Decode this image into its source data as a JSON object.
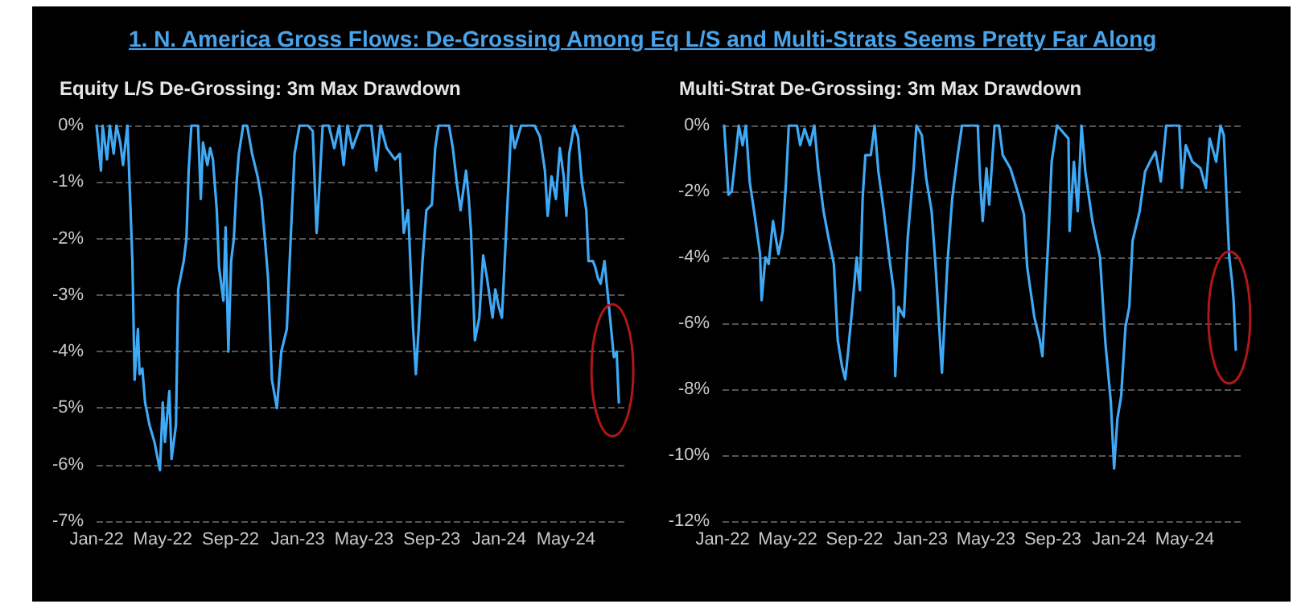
{
  "chart_data": [
    {
      "type": "line",
      "title": "Equity L/S De-Grossing: 3m Max Drawdown",
      "annotations": [
        "1. N. America Gross Flows:  De-Grossing Among Eq L/S and Multi-Strats Seems Pretty Far Along"
      ],
      "x": [
        "2022-01-01",
        "2022-01-09",
        "2022-01-12",
        "2022-01-20",
        "2022-01-25",
        "2022-02-01",
        "2022-02-06",
        "2022-02-13",
        "2022-02-18",
        "2022-02-26",
        "2022-03-01",
        "2022-03-07",
        "2022-03-11",
        "2022-03-17",
        "2022-03-20",
        "2022-03-25",
        "2022-03-30",
        "2022-04-07",
        "2022-04-16",
        "2022-04-26",
        "2022-05-01",
        "2022-05-05",
        "2022-05-13",
        "2022-05-17",
        "2022-05-25",
        "2022-05-29",
        "2022-06-08",
        "2022-06-13",
        "2022-06-17",
        "2022-06-22",
        "2022-07-04",
        "2022-07-09",
        "2022-07-13",
        "2022-07-21",
        "2022-07-26",
        "2022-07-31",
        "2022-08-07",
        "2022-08-11",
        "2022-08-19",
        "2022-08-23",
        "2022-08-28",
        "2022-09-02",
        "2022-09-07",
        "2022-09-12",
        "2022-09-16",
        "2022-09-24",
        "2022-10-01",
        "2022-10-10",
        "2022-10-20",
        "2022-10-27",
        "2022-11-03",
        "2022-11-08",
        "2022-11-15",
        "2022-11-24",
        "2022-12-02",
        "2022-12-12",
        "2022-12-19",
        "2022-12-26",
        "2023-01-04",
        "2023-01-19",
        "2023-01-28",
        "2023-02-04",
        "2023-02-09",
        "2023-02-15",
        "2023-02-26",
        "2023-03-08",
        "2023-03-17",
        "2023-03-25",
        "2023-04-01",
        "2023-04-10",
        "2023-04-25",
        "2023-05-14",
        "2023-05-23",
        "2023-05-31",
        "2023-06-11",
        "2023-06-26",
        "2023-07-05",
        "2023-07-12",
        "2023-07-20",
        "2023-07-29",
        "2023-08-03",
        "2023-08-08",
        "2023-08-15",
        "2023-08-22",
        "2023-09-01",
        "2023-09-07",
        "2023-09-13",
        "2023-10-02",
        "2023-10-09",
        "2023-10-16",
        "2023-10-23",
        "2023-11-02",
        "2023-11-07",
        "2023-11-11",
        "2023-11-18",
        "2023-11-26",
        "2023-12-03",
        "2023-12-10",
        "2023-12-20",
        "2023-12-25",
        "2023-12-31",
        "2024-01-06",
        "2024-01-13",
        "2024-01-19",
        "2024-01-23",
        "2024-01-29",
        "2024-02-10",
        "2024-03-05",
        "2024-03-15",
        "2024-03-24",
        "2024-03-29",
        "2024-04-05",
        "2024-04-13",
        "2024-04-20",
        "2024-04-27",
        "2024-05-02",
        "2024-05-07",
        "2024-05-16",
        "2024-05-23",
        "2024-05-30",
        "2024-06-07",
        "2024-06-11",
        "2024-06-19",
        "2024-06-23",
        "2024-06-28",
        "2024-07-03",
        "2024-07-10",
        "2024-07-15",
        "2024-07-22",
        "2024-07-27",
        "2024-08-01",
        "2024-08-05"
      ],
      "series": [
        {
          "color": "#3fa9f5",
          "values": [
            0,
            -0.8,
            0,
            -0.6,
            0,
            -0.5,
            0,
            -0.3,
            -0.7,
            0,
            -0.8,
            -2.4,
            -4.5,
            -3.6,
            -4.4,
            -4.3,
            -4.9,
            -5.3,
            -5.6,
            -6.1,
            -4.9,
            -5.6,
            -4.7,
            -5.9,
            -5.3,
            -2.9,
            -2.4,
            -2.0,
            -0.8,
            0,
            0,
            -1.3,
            -0.3,
            -0.7,
            -0.4,
            -0.6,
            -1.5,
            -2.5,
            -3.1,
            -1.8,
            -4.0,
            -2.4,
            -2.0,
            -1.0,
            -0.5,
            0,
            0,
            -0.5,
            -0.9,
            -1.3,
            -2.1,
            -2.7,
            -4.5,
            -5.0,
            -4.0,
            -3.6,
            -2.0,
            -0.5,
            0,
            0,
            -0.1,
            -1.9,
            -1.1,
            0,
            0,
            -0.4,
            0,
            -0.7,
            0,
            -0.4,
            0,
            0,
            -0.8,
            0,
            -0.4,
            -0.6,
            -0.5,
            -1.9,
            -1.5,
            -3.6,
            -4.4,
            -3.6,
            -2.4,
            -1.5,
            -1.4,
            -0.4,
            0,
            0,
            -0.4,
            -1.0,
            -1.5,
            -0.8,
            -1.3,
            -1.9,
            -3.8,
            -3.4,
            -2.3,
            -2.7,
            -3.4,
            -2.9,
            -3.2,
            -3.4,
            -2.0,
            -0.8,
            0,
            -0.4,
            0,
            0,
            -0.2,
            -0.8,
            -1.6,
            -0.9,
            -1.3,
            -0.4,
            -0.9,
            -1.6,
            -0.5,
            0,
            -0.2,
            -1.0,
            -1.5,
            -2.4,
            -2.4,
            -2.5,
            -2.7,
            -2.8,
            -2.4,
            -2.9,
            -3.6,
            -4.1,
            -4.0,
            -4.9
          ]
        }
      ],
      "xlim": [
        "2022-01-01",
        "2024-08-15"
      ],
      "xticks": [
        {
          "value": "2022-01-01",
          "label": "Jan-22"
        },
        {
          "value": "2022-05-01",
          "label": "May-22"
        },
        {
          "value": "2022-09-01",
          "label": "Sep-22"
        },
        {
          "value": "2023-01-01",
          "label": "Jan-23"
        },
        {
          "value": "2023-05-01",
          "label": "May-23"
        },
        {
          "value": "2023-09-01",
          "label": "Sep-23"
        },
        {
          "value": "2024-01-01",
          "label": "Jan-24"
        },
        {
          "value": "2024-05-01",
          "label": "May-24"
        }
      ],
      "ylim": [
        -7,
        0
      ],
      "yticks": [
        {
          "value": 0,
          "label": "0%"
        },
        {
          "value": -1,
          "label": "-1%"
        },
        {
          "value": -2,
          "label": "-2%"
        },
        {
          "value": -3,
          "label": "-3%"
        },
        {
          "value": -4,
          "label": "-4%"
        },
        {
          "value": -5,
          "label": "-5%"
        },
        {
          "value": -6,
          "label": "-6%"
        },
        {
          "value": -7,
          "label": "-7%"
        }
      ],
      "grid": "y",
      "marker": "none",
      "line_style": "solid"
    },
    {
      "type": "line",
      "title": "Multi-Strat De-Grossing: 3m Max Drawdown",
      "x": [
        "2022-01-04",
        "2022-01-12",
        "2022-01-18",
        "2022-01-24",
        "2022-01-31",
        "2022-02-07",
        "2022-02-13",
        "2022-02-20",
        "2022-03-01",
        "2022-03-11",
        "2022-03-14",
        "2022-03-21",
        "2022-03-27",
        "2022-04-04",
        "2022-04-14",
        "2022-04-22",
        "2022-04-28",
        "2022-05-03",
        "2022-05-18",
        "2022-05-24",
        "2022-06-01",
        "2022-06-11",
        "2022-06-19",
        "2022-06-26",
        "2022-07-06",
        "2022-07-15",
        "2022-07-25",
        "2022-08-01",
        "2022-08-09",
        "2022-08-15",
        "2022-08-20",
        "2022-08-28",
        "2022-09-05",
        "2022-09-11",
        "2022-09-16",
        "2022-09-21",
        "2022-10-01",
        "2022-10-08",
        "2022-10-15",
        "2022-10-25",
        "2022-11-04",
        "2022-11-12",
        "2022-11-15",
        "2022-11-21",
        "2022-12-01",
        "2022-12-08",
        "2022-12-19",
        "2022-12-24",
        "2023-01-03",
        "2023-01-11",
        "2023-01-21",
        "2023-01-28",
        "2023-02-09",
        "2023-02-19",
        "2023-02-28",
        "2023-03-10",
        "2023-03-18",
        "2023-04-16",
        "2023-04-20",
        "2023-04-25",
        "2023-05-02",
        "2023-05-07",
        "2023-05-17",
        "2023-05-25",
        "2023-06-01",
        "2023-06-15",
        "2023-06-30",
        "2023-07-10",
        "2023-07-16",
        "2023-07-29",
        "2023-08-08",
        "2023-08-13",
        "2023-08-24",
        "2023-08-30",
        "2023-09-09",
        "2023-09-30",
        "2023-10-02",
        "2023-10-10",
        "2023-10-17",
        "2023-10-24",
        "2023-10-31",
        "2023-11-13",
        "2023-11-27",
        "2023-12-07",
        "2023-12-17",
        "2023-12-23",
        "2023-12-29",
        "2024-01-05",
        "2024-01-13",
        "2024-01-20",
        "2024-01-26",
        "2024-02-08",
        "2024-02-18",
        "2024-02-27",
        "2024-03-08",
        "2024-03-18",
        "2024-03-28",
        "2024-04-21",
        "2024-04-26",
        "2024-05-03",
        "2024-05-15",
        "2024-05-30",
        "2024-06-09",
        "2024-06-16",
        "2024-06-28",
        "2024-07-06",
        "2024-07-12",
        "2024-07-17",
        "2024-07-22",
        "2024-07-27",
        "2024-07-30",
        "2024-08-03"
      ],
      "series": [
        {
          "color": "#3fa9f5",
          "values": [
            0,
            -2.1,
            -2.0,
            -1.1,
            0,
            -0.6,
            0,
            -1.7,
            -2.7,
            -3.9,
            -5.3,
            -4.0,
            -4.2,
            -2.9,
            -3.9,
            -3.2,
            -1.7,
            0,
            0,
            -0.6,
            -0.1,
            -0.6,
            0,
            -1.3,
            -2.6,
            -3.4,
            -4.2,
            -6.5,
            -7.3,
            -7.7,
            -6.9,
            -5.5,
            -4.0,
            -5.0,
            -2.2,
            -0.9,
            -0.9,
            0,
            -1.4,
            -2.6,
            -4.0,
            -5.0,
            -7.6,
            -5.5,
            -5.8,
            -3.4,
            -1.3,
            0,
            -0.3,
            -1.6,
            -2.6,
            -4.2,
            -7.5,
            -4.2,
            -2.2,
            -0.9,
            0,
            0,
            -1.6,
            -2.9,
            -1.3,
            -2.4,
            0,
            0,
            -0.9,
            -1.3,
            -2.1,
            -2.7,
            -4.3,
            -5.8,
            -6.5,
            -7.0,
            -3.4,
            -1.1,
            0,
            -0.4,
            -3.2,
            -1.1,
            -2.6,
            0,
            -1.4,
            -2.9,
            -4.0,
            -6.6,
            -8.4,
            -10.4,
            -8.9,
            -8.2,
            -6.1,
            -5.5,
            -3.5,
            -2.6,
            -1.4,
            -1.1,
            -0.8,
            -1.7,
            0,
            0,
            -1.9,
            -0.6,
            -1.1,
            -1.3,
            -1.9,
            -0.4,
            -1.1,
            0,
            -0.3,
            -2.2,
            -4.0,
            -4.7,
            -5.3,
            -6.8
          ]
        }
      ],
      "xlim": [
        "2022-01-01",
        "2024-08-15"
      ],
      "xticks": [
        {
          "value": "2022-01-01",
          "label": "Jan-22"
        },
        {
          "value": "2022-05-01",
          "label": "May-22"
        },
        {
          "value": "2022-09-01",
          "label": "Sep-22"
        },
        {
          "value": "2023-01-01",
          "label": "Jan-23"
        },
        {
          "value": "2023-05-01",
          "label": "May-23"
        },
        {
          "value": "2023-09-01",
          "label": "Sep-23"
        },
        {
          "value": "2024-01-01",
          "label": "Jan-24"
        },
        {
          "value": "2024-05-01",
          "label": "May-24"
        }
      ],
      "ylim": [
        -12,
        0
      ],
      "yticks": [
        {
          "value": 0,
          "label": "0%"
        },
        {
          "value": -2,
          "label": "-2%"
        },
        {
          "value": -4,
          "label": "-4%"
        },
        {
          "value": -6,
          "label": "-6%"
        },
        {
          "value": -8,
          "label": "-8%"
        },
        {
          "value": -10,
          "label": "-10%"
        },
        {
          "value": -12,
          "label": "-12%"
        }
      ],
      "grid": "y",
      "marker": "none",
      "line_style": "solid"
    }
  ]
}
